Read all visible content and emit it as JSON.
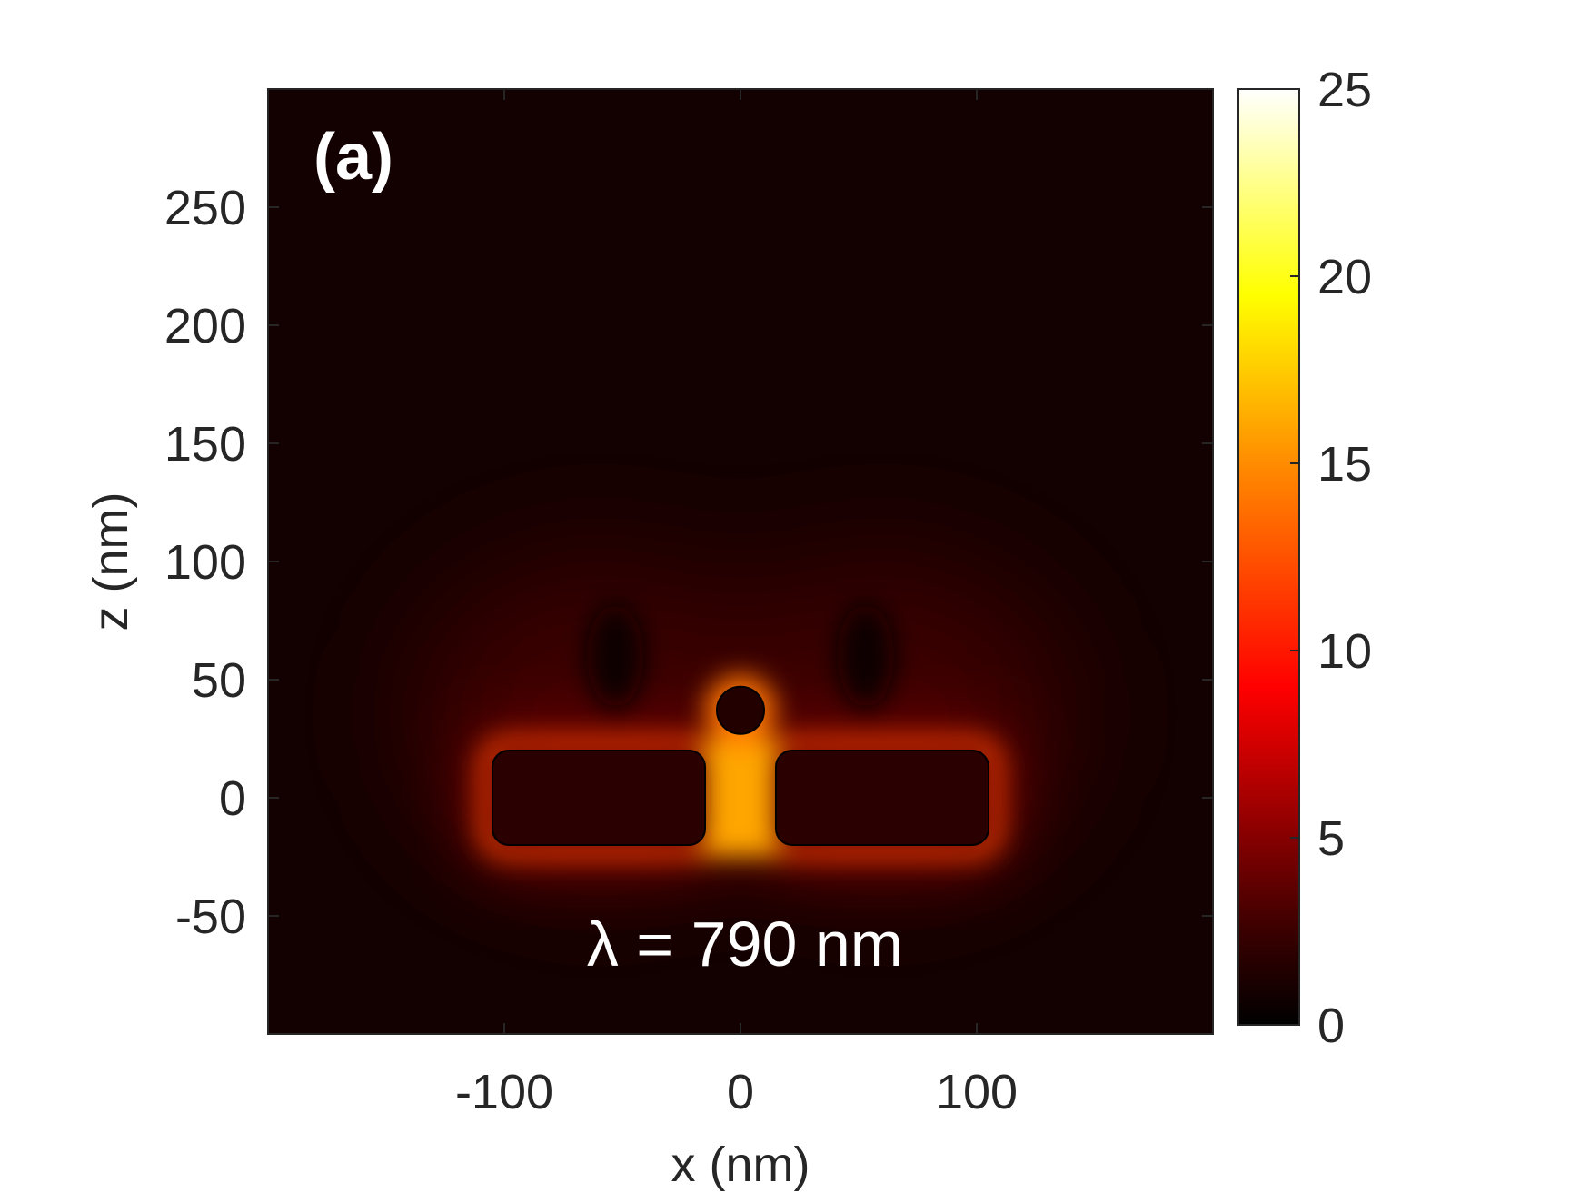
{
  "chart_data": {
    "type": "heatmap",
    "panel_label": "(a)",
    "annotation": "λ = 790 nm",
    "xlabel": "x (nm)",
    "ylabel": "z (nm)",
    "xlim": [
      -200,
      200
    ],
    "ylim": [
      -100,
      300
    ],
    "x_ticks": [
      -100,
      0,
      100
    ],
    "y_ticks": [
      -50,
      0,
      50,
      100,
      150,
      200,
      250
    ],
    "colorbar": {
      "range": [
        0,
        25
      ],
      "ticks": [
        0,
        5,
        10,
        15,
        20,
        25
      ],
      "colormap": "hot",
      "stops": [
        {
          "value": 0,
          "color": "#000000"
        },
        {
          "value": 2.5,
          "color": "#3a0000"
        },
        {
          "value": 9,
          "color": "#ff0000"
        },
        {
          "value": 15,
          "color": "#ff8c00"
        },
        {
          "value": 19.5,
          "color": "#ffff00"
        },
        {
          "value": 25,
          "color": "#ffffff"
        }
      ]
    },
    "structures": [
      {
        "shape": "rounded-rect",
        "x": [
          -105,
          -15
        ],
        "z": [
          -20,
          20
        ]
      },
      {
        "shape": "rounded-rect",
        "x": [
          15,
          105
        ],
        "z": [
          -20,
          20
        ]
      },
      {
        "shape": "circle",
        "cx": 0,
        "cz": 37,
        "r": 10
      }
    ],
    "background_level": 0.8
  }
}
